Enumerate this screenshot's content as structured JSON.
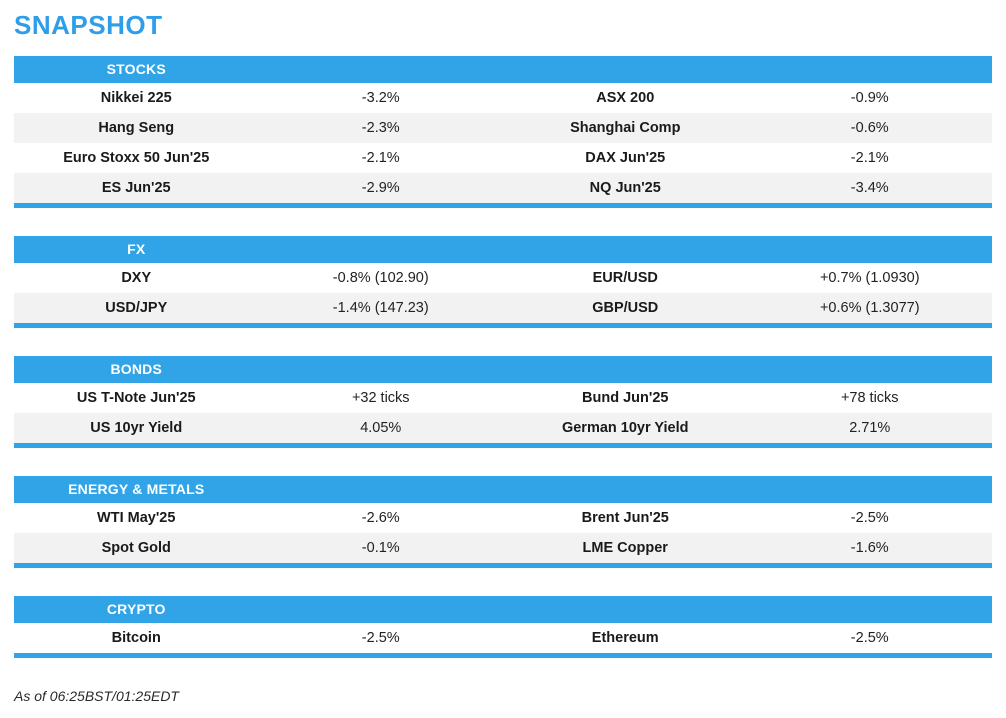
{
  "title": "SNAPSHOT",
  "footer": "As of 06:25BST/01:25EDT",
  "colors": {
    "accent_blue": "#31a4e8",
    "title_blue": "#2e9ee9",
    "row_alt_gray": "#f2f2f2",
    "header_text": "#ffffff",
    "body_text": "#1a1a1a"
  },
  "sections": [
    {
      "header": "STOCKS",
      "rows": [
        [
          "Nikkei 225",
          "-3.2%",
          "ASX 200",
          "-0.9%"
        ],
        [
          "Hang Seng",
          "-2.3%",
          "Shanghai Comp",
          "-0.6%"
        ],
        [
          "Euro Stoxx 50 Jun'25",
          "-2.1%",
          "DAX Jun'25",
          "-2.1%"
        ],
        [
          "ES Jun'25",
          "-2.9%",
          "NQ Jun'25",
          "-3.4%"
        ]
      ]
    },
    {
      "header": "FX",
      "rows": [
        [
          "DXY",
          "-0.8% (102.90)",
          "EUR/USD",
          "+0.7% (1.0930)"
        ],
        [
          "USD/JPY",
          "-1.4% (147.23)",
          "GBP/USD",
          "+0.6% (1.3077)"
        ]
      ]
    },
    {
      "header": "BONDS",
      "rows": [
        [
          "US T-Note Jun'25",
          "+32 ticks",
          "Bund Jun'25",
          "+78 ticks"
        ],
        [
          "US 10yr Yield",
          "4.05%",
          "German 10yr Yield",
          "2.71%"
        ]
      ]
    },
    {
      "header": "ENERGY & METALS",
      "rows": [
        [
          "WTI May'25",
          "-2.6%",
          "Brent Jun'25",
          "-2.5%"
        ],
        [
          "Spot Gold",
          "-0.1%",
          "LME Copper",
          "-1.6%"
        ]
      ]
    },
    {
      "header": "CRYPTO",
      "rows": [
        [
          "Bitcoin",
          "-2.5%",
          "Ethereum",
          "-2.5%"
        ]
      ]
    }
  ]
}
